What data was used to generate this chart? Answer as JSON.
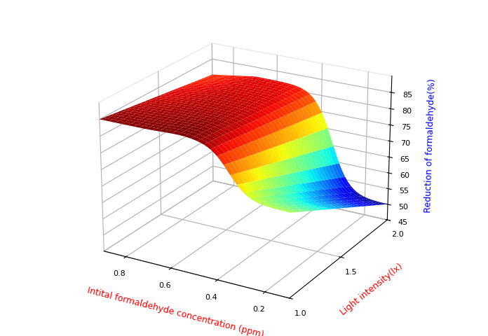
{
  "xlabel": "Intital formaldehyde concentration (ppm)",
  "ylabel": "Light intensity(lx)",
  "zlabel": "Reduction of formaldehyde(%)",
  "xlabel_color": "red",
  "ylabel_color": "red",
  "zlabel_color": "blue",
  "zlim": [
    45,
    90
  ],
  "zticks": [
    45,
    50,
    55,
    60,
    65,
    70,
    75,
    80,
    85
  ],
  "xticks": [
    0.2,
    0.4,
    0.6,
    0.8
  ],
  "yticks": [
    1.0,
    1.5,
    2.0
  ],
  "cmap": "jet",
  "figsize": [
    6.96,
    4.81
  ],
  "dpi": 100,
  "elev": 22,
  "azim": -60
}
